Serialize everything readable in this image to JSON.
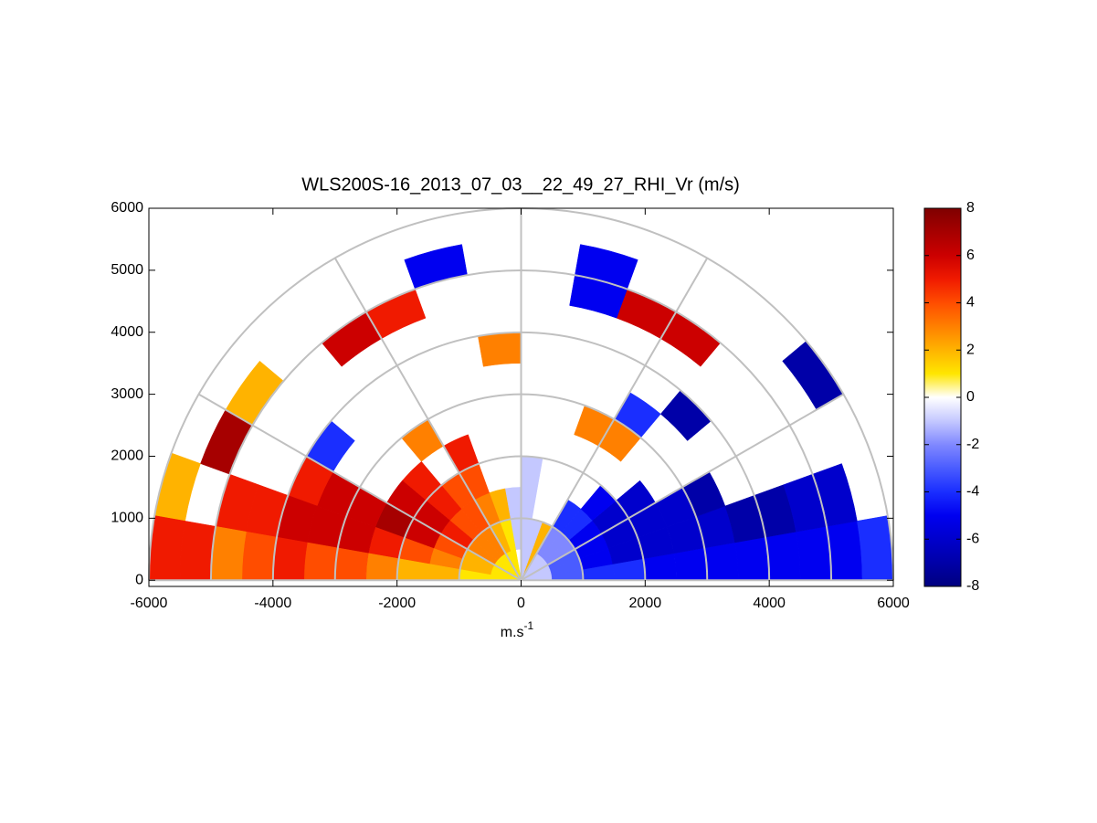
{
  "chart_data": {
    "type": "polar_heatmap",
    "title": "WLS200S-16_2013_07_03__22_49_27_RHI_Vr (m/s)",
    "xlabel": {
      "base": "m.s",
      "sup": "-1"
    },
    "xlim": [
      -6000,
      6000
    ],
    "ylim": [
      -100,
      6000
    ],
    "xticks": [
      -6000,
      -4000,
      -2000,
      0,
      2000,
      4000,
      6000
    ],
    "yticks": [
      0,
      1000,
      2000,
      3000,
      4000,
      5000,
      6000
    ],
    "rgrid": [
      1000,
      2000,
      3000,
      4000,
      5000,
      6000
    ],
    "thetagrid": [
      0,
      30,
      60,
      90,
      120,
      150,
      180
    ],
    "grid_color": "#c0c0c0",
    "theta_edges": [
      0,
      10,
      20,
      30,
      40,
      50,
      60,
      70,
      80,
      90,
      100,
      110,
      120,
      130,
      140,
      150,
      160,
      170,
      180
    ],
    "r_edges": [
      0,
      500,
      1000,
      1500,
      2000,
      2500,
      3000,
      3500,
      4000,
      4500,
      5000,
      5500,
      6000
    ],
    "values": [
      [
        -1,
        -3,
        -4,
        -4,
        -5,
        -5,
        -5,
        -5,
        -5,
        -5,
        -5,
        -4
      ],
      [
        -1,
        -3,
        -5,
        -6,
        -6,
        -6,
        -6,
        -7,
        -7,
        -6,
        -6,
        null
      ],
      [
        -1,
        -3,
        -5,
        -6,
        -6,
        -6,
        -7,
        null,
        null,
        null,
        null,
        null
      ],
      [
        -1,
        -2,
        -5,
        -6,
        -6,
        null,
        null,
        null,
        null,
        null,
        null,
        -7
      ],
      [
        -1,
        -2,
        -4,
        -5,
        null,
        null,
        null,
        -7,
        null,
        null,
        null,
        null
      ],
      [
        -1,
        -2,
        -4,
        null,
        null,
        3,
        -4,
        null,
        null,
        6,
        null,
        null
      ],
      [
        2,
        2,
        null,
        null,
        null,
        3,
        null,
        null,
        null,
        6,
        null,
        null
      ],
      [
        -1,
        -1,
        null,
        null,
        null,
        null,
        null,
        null,
        null,
        -5,
        -5,
        null
      ],
      [
        -1,
        -1,
        -1,
        -1,
        null,
        null,
        null,
        null,
        null,
        null,
        null,
        null
      ],
      [
        0,
        -1,
        -1,
        null,
        null,
        null,
        null,
        3,
        null,
        null,
        null,
        null
      ],
      [
        1,
        1,
        2,
        null,
        null,
        null,
        null,
        null,
        null,
        null,
        -5,
        null
      ],
      [
        1,
        2,
        3,
        4,
        5,
        null,
        null,
        null,
        null,
        5,
        null,
        null
      ],
      [
        1,
        3,
        4,
        4,
        null,
        3,
        null,
        null,
        null,
        6,
        null,
        null
      ],
      [
        1,
        3,
        4,
        5,
        5,
        null,
        null,
        null,
        null,
        null,
        null,
        null
      ],
      [
        1,
        3,
        5,
        6,
        6,
        null,
        null,
        -4,
        null,
        null,
        2,
        null
      ],
      [
        1,
        2,
        4,
        6,
        7,
        6,
        6,
        5,
        null,
        null,
        7,
        null
      ],
      [
        1,
        2,
        3,
        4,
        5,
        6,
        6,
        6,
        5,
        5,
        null,
        2
      ],
      [
        1,
        1,
        2,
        2,
        3,
        4,
        4,
        5,
        4,
        3,
        5,
        5
      ]
    ],
    "clim": [
      -8,
      8
    ],
    "cticks": [
      -8,
      -6,
      -4,
      -2,
      0,
      2,
      4,
      6,
      8
    ],
    "colormap": [
      "#00007f",
      "#0000a8",
      "#0000cc",
      "#0000f0",
      "#1a2eff",
      "#4a5cff",
      "#8088ff",
      "#c4c8ff",
      "#ffffff",
      "#ffe600",
      "#ffb300",
      "#ff8000",
      "#ff4d00",
      "#f01a00",
      "#cc0000",
      "#a60000",
      "#7f0000"
    ]
  }
}
